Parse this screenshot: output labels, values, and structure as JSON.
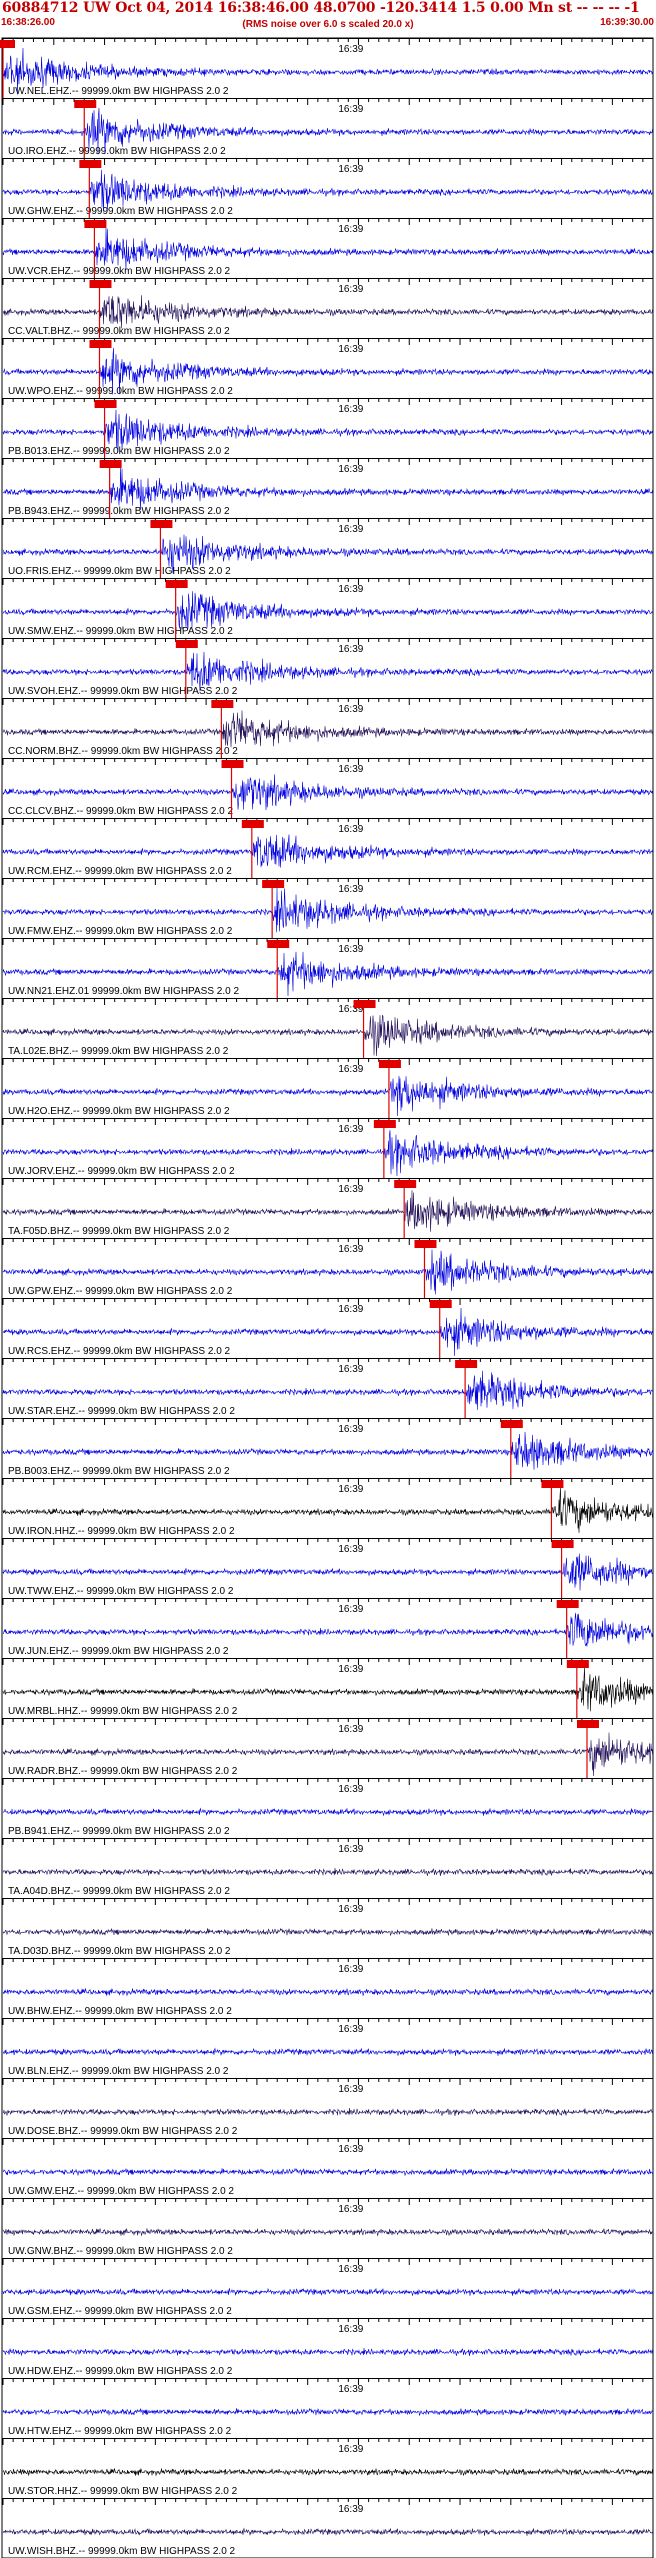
{
  "header": {
    "title": "60884712 UW Oct 04, 2014 16:38:46.00   48.0700 -120.3414  1.5 0.00 Mn st -- -- --  -1",
    "subtitle": "(RMS noise over 6.0 s scaled 20.0 x)",
    "start_time": "16:38:26.00",
    "end_time": "16:39:30.00"
  },
  "colors": {
    "header_text": "#c00000",
    "trace_blue": "#0000e0",
    "trace_navy": "#22105a",
    "trace_black": "#000000",
    "pick_marker": "#e00000",
    "grid": "#000000"
  },
  "chart_data": {
    "type": "seismogram",
    "time_range_s": [
      0,
      64
    ],
    "tick_interval_s": 1,
    "minute_label": "16:39",
    "minute_label_time_s": 34,
    "stations": [
      {
        "label": "UW.NEL.EHZ.-- 99999.0km BW  HIGHPASS  2.0  2",
        "pick_s": 0.0,
        "color": "blue"
      },
      {
        "label": "UO.IRO.EHZ.-- 99999.0km BW  HIGHPASS  2.0  2",
        "pick_s": 8.0,
        "color": "blue"
      },
      {
        "label": "UW.GHW.EHZ.-- 99999.0km BW  HIGHPASS  2.0  2",
        "pick_s": 8.5,
        "color": "blue"
      },
      {
        "label": "UW.VCR.EHZ.-- 99999.0km BW  HIGHPASS  2.0  2",
        "pick_s": 9.0,
        "color": "blue"
      },
      {
        "label": "CC.VALT.BHZ.-- 99999.0km BW  HIGHPASS  2.0  2",
        "pick_s": 9.5,
        "color": "navy"
      },
      {
        "label": "UW.WPO.EHZ.-- 99999.0km BW  HIGHPASS  2.0  2",
        "pick_s": 9.5,
        "color": "blue"
      },
      {
        "label": "PB.B013.EHZ.-- 99999.0km BW  HIGHPASS  2.0  2",
        "pick_s": 10.0,
        "color": "blue"
      },
      {
        "label": "PB.B943.EHZ.-- 99999.0km BW  HIGHPASS  2.0  2",
        "pick_s": 10.5,
        "color": "blue"
      },
      {
        "label": "UO.FRIS.EHZ.-- 99999.0km BW  HIGHPASS  2.0  2",
        "pick_s": 15.5,
        "color": "blue"
      },
      {
        "label": "UW.SMW.EHZ.-- 99999.0km BW  HIGHPASS  2.0  2",
        "pick_s": 17.0,
        "color": "blue"
      },
      {
        "label": "UW.SVOH.EHZ.-- 99999.0km BW  HIGHPASS  2.0  2",
        "pick_s": 18.0,
        "color": "blue"
      },
      {
        "label": "CC.NORM.BHZ.-- 99999.0km BW  HIGHPASS  2.0  2",
        "pick_s": 21.5,
        "color": "navy"
      },
      {
        "label": "CC.CLCV.BHZ.-- 99999.0km BW  HIGHPASS  2.0  2",
        "pick_s": 22.5,
        "color": "blue"
      },
      {
        "label": "UW.RCM.EHZ.-- 99999.0km BW  HIGHPASS  2.0  2",
        "pick_s": 24.5,
        "color": "blue"
      },
      {
        "label": "UW.FMW.EHZ.-- 99999.0km BW  HIGHPASS  2.0  2",
        "pick_s": 26.5,
        "color": "blue"
      },
      {
        "label": "UW.NN21.EHZ.01 99999.0km BW  HIGHPASS  2.0  2",
        "pick_s": 27.0,
        "color": "blue"
      },
      {
        "label": "TA.L02E.BHZ.-- 99999.0km BW  HIGHPASS  2.0  2",
        "pick_s": 35.5,
        "color": "navy"
      },
      {
        "label": "UW.H2O.EHZ.-- 99999.0km BW  HIGHPASS  2.0  2",
        "pick_s": 38.0,
        "color": "blue"
      },
      {
        "label": "UW.JORV.EHZ.-- 99999.0km BW  HIGHPASS  2.0  2",
        "pick_s": 37.5,
        "color": "blue"
      },
      {
        "label": "TA.F05D.BHZ.-- 99999.0km BW  HIGHPASS  2.0  2",
        "pick_s": 39.5,
        "color": "navy"
      },
      {
        "label": "UW.GPW.EHZ.-- 99999.0km BW  HIGHPASS  2.0  2",
        "pick_s": 41.5,
        "color": "blue"
      },
      {
        "label": "UW.RCS.EHZ.-- 99999.0km BW  HIGHPASS  2.0  2",
        "pick_s": 43.0,
        "color": "blue"
      },
      {
        "label": "UW.STAR.EHZ.-- 99999.0km BW  HIGHPASS  2.0  2",
        "pick_s": 45.5,
        "color": "blue"
      },
      {
        "label": "PB.B003.EHZ.-- 99999.0km BW  HIGHPASS  2.0  2",
        "pick_s": 50.0,
        "color": "blue"
      },
      {
        "label": "UW.IRON.HHZ.-- 99999.0km BW  HIGHPASS  2.0  2",
        "pick_s": 54.0,
        "color": "black"
      },
      {
        "label": "UW.TWW.EHZ.-- 99999.0km BW  HIGHPASS  2.0  2",
        "pick_s": 55.0,
        "color": "blue"
      },
      {
        "label": "UW.JUN.EHZ.-- 99999.0km BW  HIGHPASS  2.0  2",
        "pick_s": 55.5,
        "color": "blue"
      },
      {
        "label": "UW.MRBL.HHZ.-- 99999.0km BW  HIGHPASS  2.0  2",
        "pick_s": 56.5,
        "color": "black"
      },
      {
        "label": "UW.RADR.BHZ.-- 99999.0km BW  HIGHPASS  2.0  2",
        "pick_s": 57.5,
        "color": "navy"
      },
      {
        "label": "PB.B941.EHZ.-- 99999.0km BW  HIGHPASS  2.0  2",
        "pick_s": null,
        "color": "blue"
      },
      {
        "label": "TA.A04D.BHZ.-- 99999.0km BW  HIGHPASS  2.0  2",
        "pick_s": null,
        "color": "navy"
      },
      {
        "label": "TA.D03D.BHZ.-- 99999.0km BW  HIGHPASS  2.0  2",
        "pick_s": null,
        "color": "navy"
      },
      {
        "label": "UW.BHW.EHZ.-- 99999.0km BW  HIGHPASS  2.0  2",
        "pick_s": null,
        "color": "blue"
      },
      {
        "label": "UW.BLN.EHZ.-- 99999.0km BW  HIGHPASS  2.0  2",
        "pick_s": null,
        "color": "blue"
      },
      {
        "label": "UW.DOSE.BHZ.-- 99999.0km BW  HIGHPASS  2.0  2",
        "pick_s": null,
        "color": "navy"
      },
      {
        "label": "UW.GMW.EHZ.-- 99999.0km BW  HIGHPASS  2.0  2",
        "pick_s": null,
        "color": "blue"
      },
      {
        "label": "UW.GNW.BHZ.-- 99999.0km BW  HIGHPASS  2.0  2",
        "pick_s": null,
        "color": "navy"
      },
      {
        "label": "UW.GSM.EHZ.-- 99999.0km BW  HIGHPASS  2.0  2",
        "pick_s": null,
        "color": "blue"
      },
      {
        "label": "UW.HDW.EHZ.-- 99999.0km BW  HIGHPASS  2.0  2",
        "pick_s": null,
        "color": "blue"
      },
      {
        "label": "UW.HTW.EHZ.-- 99999.0km BW  HIGHPASS  2.0  2",
        "pick_s": null,
        "color": "blue"
      },
      {
        "label": "UW.STOR.HHZ.-- 99999.0km BW  HIGHPASS  2.0  2",
        "pick_s": null,
        "color": "black"
      },
      {
        "label": "UW.WISH.BHZ.-- 99999.0km BW  HIGHPASS  2.0  2",
        "pick_s": null,
        "color": "navy"
      }
    ]
  }
}
